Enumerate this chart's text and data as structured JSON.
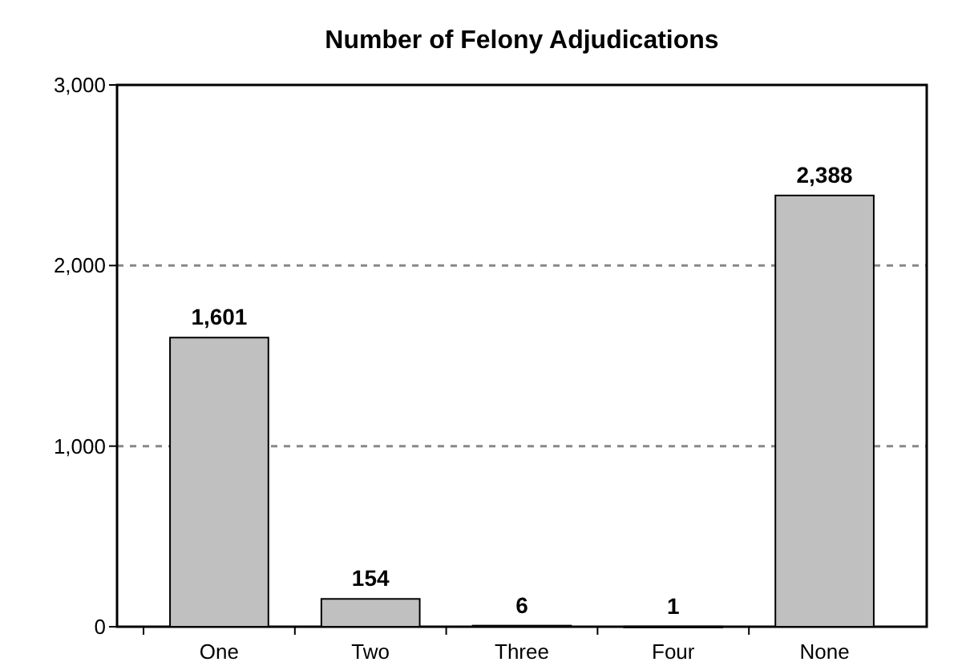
{
  "chart_data": {
    "type": "bar",
    "title": "Number of Felony Adjudications",
    "categories": [
      "One",
      "Two",
      "Three",
      "Four",
      "None"
    ],
    "values": [
      1601,
      154,
      6,
      1,
      2388
    ],
    "color": "#c0c0c0",
    "ylim": [
      0,
      3000
    ],
    "yticks": [
      {
        "value": 0,
        "label": "0"
      },
      {
        "value": 1000,
        "label": "1,000"
      },
      {
        "value": 2000,
        "label": "2,000"
      },
      {
        "value": 3000,
        "label": "3,000"
      }
    ],
    "value_labels": [
      "1,601",
      "154",
      "6",
      "1",
      "2,388"
    ],
    "grid": "y"
  }
}
